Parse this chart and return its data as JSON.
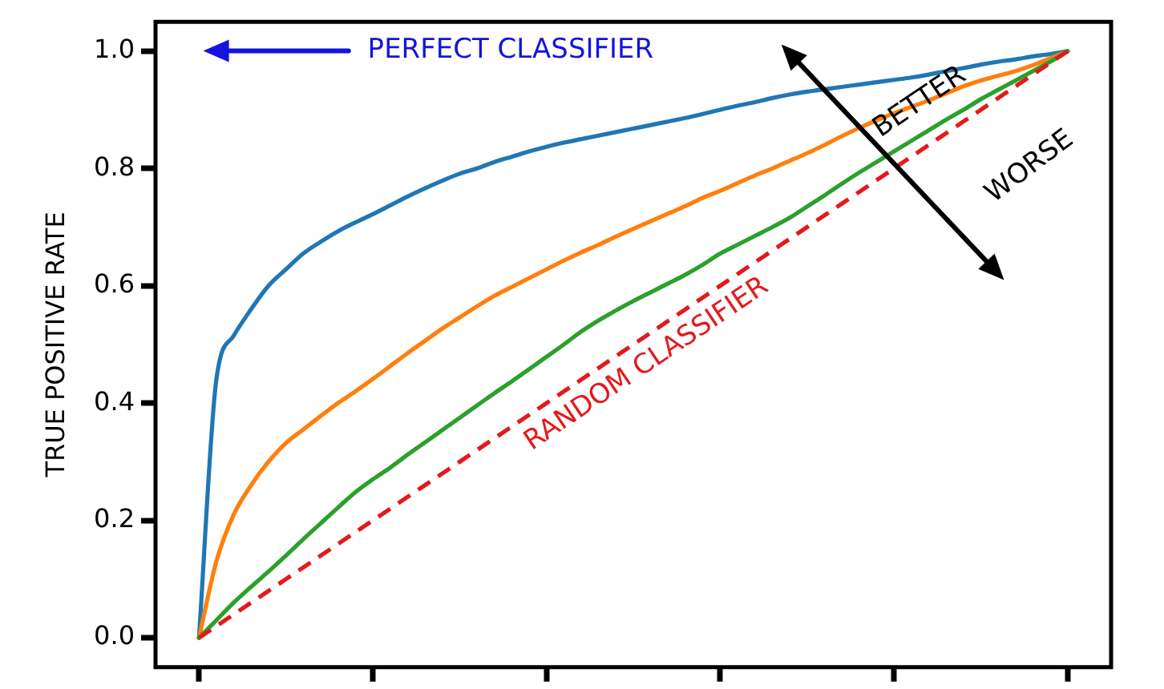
{
  "chart_data": {
    "type": "line",
    "ylabel": "TRUE POSITIVE RATE",
    "annotations": [
      "PERFECT CLASSIFIER",
      "BETTER",
      "WORSE"
    ],
    "categories": [
      null,
      null,
      null,
      null,
      null,
      null,
      null,
      null,
      null,
      null,
      null,
      null,
      null,
      null,
      null,
      null,
      null,
      null,
      null,
      null,
      null,
      null,
      null,
      null,
      null,
      null,
      null,
      null,
      null,
      null,
      null,
      null,
      null,
      null,
      null,
      null,
      null,
      null,
      null,
      null,
      null,
      null,
      null,
      null,
      null,
      null,
      null,
      null,
      null,
      null,
      null
    ],
    "ylim": [
      -0.05,
      1.05
    ],
    "yticks": [
      {
        "value": 0,
        "label": "0.0"
      },
      0.2,
      0.4,
      0.6,
      0.8,
      {
        "value": 1,
        "label": "1.0"
      }
    ],
    "tick_labels": "y",
    "grid": false,
    "legend": false,
    "marker": "none",
    "line_style": "solid",
    "series": [
      {
        "color": "#1f77b4",
        "values": [
          0,
          0.44,
          0.515,
          0.56,
          0.6,
          0.628,
          0.655,
          0.675,
          0.693,
          0.708,
          0.722,
          0.737,
          0.752,
          0.766,
          0.779,
          0.791,
          0.8,
          0.811,
          0.82,
          0.829,
          0.837,
          0.844,
          0.85,
          0.856,
          0.862,
          0.868,
          0.874,
          0.88,
          0.886,
          0.893,
          0.9,
          0.907,
          0.913,
          0.92,
          0.926,
          0.931,
          0.935,
          0.939,
          0.943,
          0.947,
          0.951,
          0.955,
          0.96,
          0.966,
          0.971,
          0.977,
          0.982,
          0.986,
          0.991,
          0.995,
          1
        ]
      },
      {
        "color": "#ff7f0e",
        "values": [
          0,
          0.13,
          0.21,
          0.26,
          0.3,
          0.332,
          0.355,
          0.378,
          0.4,
          0.42,
          0.441,
          0.463,
          0.485,
          0.506,
          0.527,
          0.546,
          0.565,
          0.583,
          0.598,
          0.613,
          0.628,
          0.643,
          0.657,
          0.67,
          0.684,
          0.697,
          0.71,
          0.723,
          0.736,
          0.75,
          0.762,
          0.775,
          0.788,
          0.8,
          0.813,
          0.826,
          0.84,
          0.855,
          0.869,
          0.882,
          0.894,
          0.905,
          0.916,
          0.928,
          0.94,
          0.95,
          0.958,
          0.966,
          0.976,
          0.988,
          1
        ]
      },
      {
        "color": "#2ca02c",
        "values": [
          0,
          0.03,
          0.06,
          0.087,
          0.113,
          0.14,
          0.168,
          0.195,
          0.222,
          0.248,
          0.27,
          0.29,
          0.312,
          0.333,
          0.354,
          0.375,
          0.396,
          0.417,
          0.437,
          0.458,
          0.479,
          0.5,
          0.522,
          0.541,
          0.558,
          0.574,
          0.589,
          0.604,
          0.619,
          0.636,
          0.655,
          0.67,
          0.685,
          0.7,
          0.716,
          0.735,
          0.754,
          0.774,
          0.793,
          0.811,
          0.829,
          0.847,
          0.865,
          0.883,
          0.9,
          0.918,
          0.934,
          0.95,
          0.966,
          0.982,
          1
        ]
      },
      {
        "name": "RANDOM CLASSIFIER",
        "color": "#e31a1c",
        "line_style": "dashed",
        "values": [
          0,
          0.02,
          0.04,
          0.06,
          0.08,
          0.1,
          0.12,
          0.14,
          0.16,
          0.18,
          0.2,
          0.22,
          0.24,
          0.26,
          0.28,
          0.3,
          0.32,
          0.34,
          0.36,
          0.38,
          0.4,
          0.42,
          0.44,
          0.46,
          0.48,
          0.5,
          0.52,
          0.54,
          0.56,
          0.58,
          0.6,
          0.62,
          0.64,
          0.66,
          0.68,
          0.7,
          0.72,
          0.74,
          0.76,
          0.78,
          0.8,
          0.82,
          0.84,
          0.86,
          0.88,
          0.9,
          0.92,
          0.94,
          0.96,
          0.98,
          1
        ]
      }
    ]
  }
}
